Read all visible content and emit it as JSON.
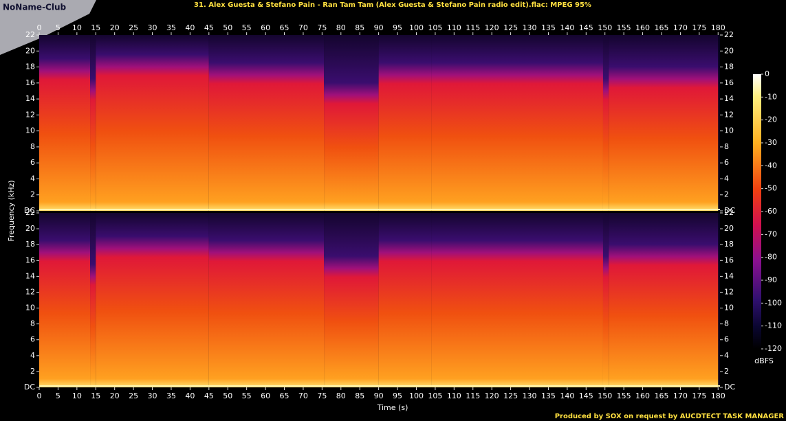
{
  "logo": "NoName-Club",
  "footer": "Produced by SOX on request by AUCDTECT TASK MANAGER",
  "chart_data": {
    "type": "spectrogram",
    "title": "31. Alex Guesta & Stefano Pain - Ran Tam Tam (Alex Guesta & Stefano Pain radio edit).flac: MPEG 95%",
    "xlabel": "Time (s)",
    "ylabel": "Frequency (kHz)",
    "xlim": [
      0,
      180.5
    ],
    "xticks": [
      0,
      5,
      10,
      15,
      20,
      25,
      30,
      35,
      40,
      45,
      50,
      55,
      60,
      65,
      70,
      75,
      80,
      85,
      90,
      95,
      100,
      105,
      110,
      115,
      120,
      125,
      130,
      135,
      140,
      145,
      150,
      155,
      160,
      165,
      170,
      175,
      180
    ],
    "ylim": [
      0,
      22
    ],
    "yticks": [
      {
        "value": 0,
        "label": "DC"
      },
      2,
      4,
      6,
      8,
      10,
      12,
      14,
      16,
      18,
      20,
      22
    ],
    "channels": [
      {
        "segments": [
          {
            "start": 0,
            "end": 13.5,
            "cutoff": 17.5
          },
          {
            "start": 13.5,
            "end": 15,
            "cutoff": 15
          },
          {
            "start": 15,
            "end": 45,
            "cutoff": 18
          },
          {
            "start": 45,
            "end": 75.5,
            "cutoff": 17
          },
          {
            "start": 75.5,
            "end": 90,
            "cutoff": 14.5
          },
          {
            "start": 90,
            "end": 104,
            "cutoff": 17
          },
          {
            "start": 104,
            "end": 149.5,
            "cutoff": 17
          },
          {
            "start": 149.5,
            "end": 151,
            "cutoff": 15
          },
          {
            "start": 151,
            "end": 180,
            "cutoff": 16.5
          }
        ]
      },
      {
        "segments": [
          {
            "start": 0,
            "end": 13.5,
            "cutoff": 17
          },
          {
            "start": 13.5,
            "end": 15,
            "cutoff": 14
          },
          {
            "start": 15,
            "end": 45,
            "cutoff": 17.5
          },
          {
            "start": 45,
            "end": 75.5,
            "cutoff": 17
          },
          {
            "start": 75.5,
            "end": 90,
            "cutoff": 15
          },
          {
            "start": 90,
            "end": 104,
            "cutoff": 17
          },
          {
            "start": 104,
            "end": 149.5,
            "cutoff": 17
          },
          {
            "start": 149.5,
            "end": 151,
            "cutoff": 15
          },
          {
            "start": 151,
            "end": 180,
            "cutoff": 16.5
          }
        ]
      }
    ],
    "colorbar": {
      "label": "dBFS",
      "clim": [
        -120,
        0
      ],
      "ticks": [
        0,
        -10,
        -20,
        -30,
        -40,
        -50,
        -60,
        -70,
        -80,
        -90,
        -100,
        -110,
        -120
      ]
    }
  }
}
